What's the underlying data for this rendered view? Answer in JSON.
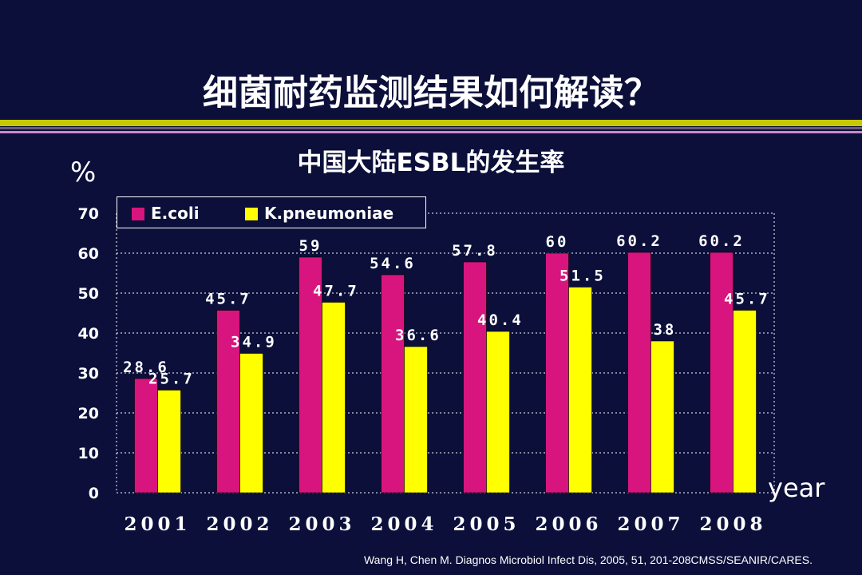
{
  "slide": {
    "title": "细菌耐药监测结果如何解读？",
    "source": "Wang H, Chen M. Diagnos Microbiol Infect Dis, 2005, 51, 201-208CMSS/SEANIR/CARES."
  },
  "colors": {
    "background": "#0b0f3a",
    "ecoli": "#d8157e",
    "kpneumoniae": "#ffff00"
  },
  "chart_data": {
    "type": "bar",
    "title": "中国大陆ESBL的发生率",
    "ylabel": "%",
    "xlabel": "year",
    "categories": [
      "2001",
      "2002",
      "2003",
      "2004",
      "2005",
      "2006",
      "2007",
      "2008"
    ],
    "ylim": [
      0,
      70
    ],
    "yticks": [
      0,
      10,
      20,
      30,
      40,
      50,
      60,
      70
    ],
    "grid": true,
    "legend": "top-left",
    "series": [
      {
        "name": "E.coli",
        "values": [
          28.6,
          45.7,
          59,
          54.6,
          57.8,
          60,
          60.2,
          60.2
        ],
        "labels": [
          "28.6",
          "45.7",
          "59",
          "54.6",
          "57.8",
          "60",
          "60.2",
          "60.2"
        ]
      },
      {
        "name": "K.pneumoniae",
        "values": [
          25.7,
          34.9,
          47.7,
          36.6,
          40.4,
          51.5,
          38,
          45.7
        ],
        "labels": [
          "25.7",
          "34.9",
          "47.7",
          "36.6",
          "40.4",
          "51.5",
          "38",
          "45.7"
        ]
      }
    ]
  }
}
